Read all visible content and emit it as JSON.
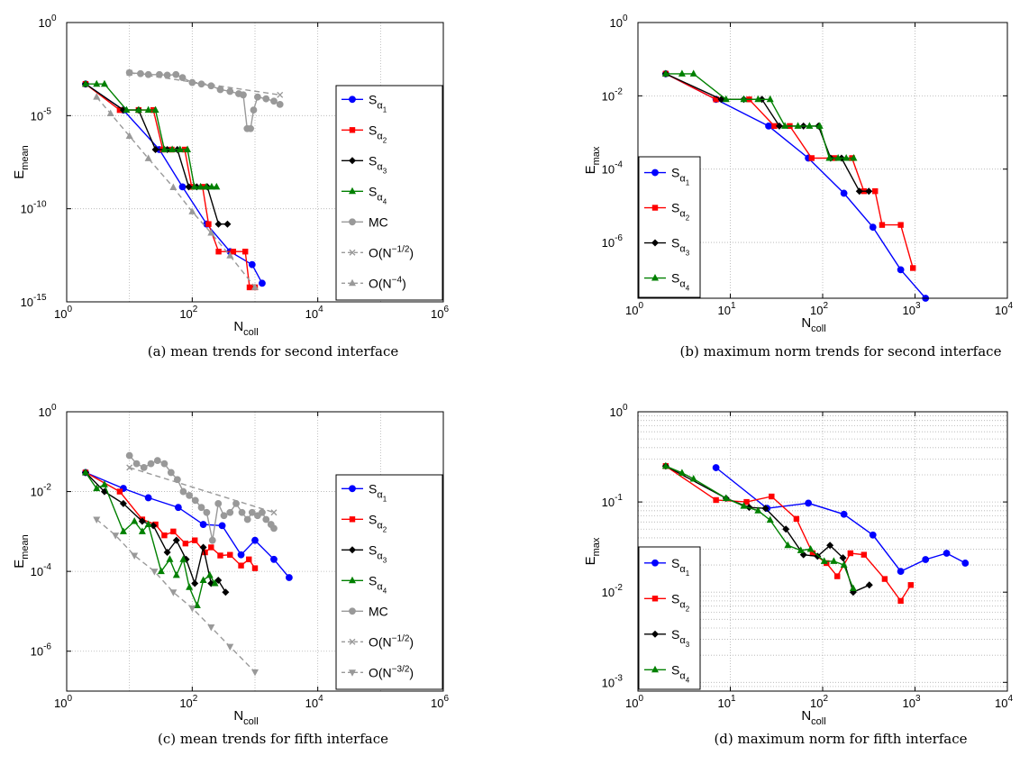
{
  "chart_data": [
    {
      "type": "line",
      "caption": "(a) mean trends for second interface",
      "xlabel": {
        "base": "N",
        "sub": "coll"
      },
      "ylabel": {
        "base": "E",
        "sub": "mean"
      },
      "x_scale": "log",
      "y_scale": "log",
      "xlim": [
        1,
        1000000
      ],
      "ylim": [
        1e-15,
        1
      ],
      "x_ticks": [
        {
          "base": "10",
          "exp": "0",
          "value": 1
        },
        {
          "base": "10",
          "exp": "2",
          "value": 100
        },
        {
          "base": "10",
          "exp": "4",
          "value": 10000
        },
        {
          "base": "10",
          "exp": "6",
          "value": 1000000
        }
      ],
      "y_ticks": [
        {
          "base": "10",
          "exp": "-15",
          "value": 1e-15
        },
        {
          "base": "10",
          "exp": "-10",
          "value": 1e-10
        },
        {
          "base": "10",
          "exp": "-5",
          "value": 1e-05
        },
        {
          "base": "10",
          "exp": "0",
          "value": 1
        }
      ],
      "grid": "major",
      "legend": "right",
      "series": [
        {
          "name": "S",
          "sub": "α",
          "subsub": "1",
          "color": "#0000ff",
          "marker": "circle",
          "dash": "",
          "x": [
            2,
            8,
            30,
            70,
            170,
            400,
            900,
            1300
          ],
          "y": [
            0.0005,
            2e-05,
            1.5e-07,
            1.5e-09,
            1.5e-11,
            5e-13,
            1e-13,
            1e-14
          ]
        },
        {
          "name": "S",
          "sub": "α",
          "subsub": "2",
          "color": "#ff0000",
          "marker": "square",
          "dash": "",
          "x": [
            2,
            7,
            14,
            24,
            34,
            47,
            76,
            98,
            146,
            182,
            263,
            450,
            700,
            820,
            1000
          ],
          "y": [
            0.0005,
            2e-05,
            2e-05,
            2e-05,
            1.5e-07,
            1.5e-07,
            1.5e-07,
            1.5e-09,
            1.5e-09,
            1.5e-11,
            5e-13,
            5e-13,
            5e-13,
            6e-15,
            6e-15
          ]
        },
        {
          "name": "S",
          "sub": "α",
          "subsub": "3",
          "color": "#000000",
          "marker": "diamond",
          "dash": "",
          "x": [
            2,
            8,
            14,
            26,
            40,
            58,
            88,
            118,
            174,
            262,
            364
          ],
          "y": [
            0.0005,
            2e-05,
            2e-05,
            1.5e-07,
            1.5e-07,
            1.5e-07,
            1.5e-09,
            1.5e-09,
            1.5e-09,
            1.5e-11,
            1.5e-11
          ]
        },
        {
          "name": "S",
          "sub": "α",
          "subsub": "4",
          "color": "#008000",
          "marker": "triangle",
          "dash": "",
          "x": [
            2,
            3,
            4,
            9,
            14,
            20,
            26,
            36,
            48,
            64,
            84,
            108,
            136,
            168,
            204,
            244
          ],
          "y": [
            0.0005,
            0.0005,
            0.0005,
            2e-05,
            2e-05,
            2e-05,
            2e-05,
            1.5e-07,
            1.5e-07,
            1.5e-07,
            1.5e-07,
            1.5e-09,
            1.5e-09,
            1.5e-09,
            1.5e-09,
            1.5e-09
          ]
        },
        {
          "name": "MC",
          "color": "#999999",
          "marker": "circle",
          "dash": "",
          "x": [
            10,
            15,
            20,
            30,
            40,
            55,
            70,
            100,
            140,
            200,
            280,
            400,
            550,
            650,
            750,
            850,
            950,
            1100,
            1500,
            2000,
            2500
          ],
          "y": [
            0.002,
            0.0018,
            0.0016,
            0.0016,
            0.0015,
            0.0016,
            0.0011,
            0.0006,
            0.0005,
            0.0004,
            0.00025,
            0.0002,
            0.00015,
            0.00013,
            2e-06,
            2e-06,
            2e-05,
            0.0001,
            8e-05,
            6e-05,
            4e-05
          ]
        },
        {
          "name": "O(N",
          "sup": "−1/2",
          "name_end": ")",
          "color": "#999999",
          "marker": "x",
          "dash": "6,4",
          "x": [
            10,
            2500
          ],
          "y": [
            0.002,
            0.00013
          ]
        },
        {
          "name": "O(N",
          "sup": "−4",
          "name_end": ")",
          "color": "#999999",
          "marker": "triangle",
          "dash": "6,4",
          "x": [
            3,
            5,
            10,
            20,
            50,
            100,
            200,
            400,
            1000
          ],
          "y": [
            0.0001,
            1.3e-05,
            8e-07,
            5e-08,
            1.4e-09,
            7e-11,
            5e-12,
            3e-13,
            6e-15
          ]
        }
      ]
    },
    {
      "type": "line",
      "caption": "(b) maximum norm trends for second interface",
      "xlabel": {
        "base": "N",
        "sub": "coll"
      },
      "ylabel": {
        "base": "E",
        "sub": "max"
      },
      "x_scale": "log",
      "y_scale": "log",
      "xlim": [
        1,
        10000
      ],
      "ylim": [
        3e-08,
        1
      ],
      "x_ticks": [
        {
          "base": "10",
          "exp": "0",
          "value": 1
        },
        {
          "base": "10",
          "exp": "1",
          "value": 10
        },
        {
          "base": "10",
          "exp": "2",
          "value": 100
        },
        {
          "base": "10",
          "exp": "3",
          "value": 1000
        },
        {
          "base": "10",
          "exp": "4",
          "value": 10000
        }
      ],
      "y_ticks": [
        {
          "base": "10",
          "exp": "-6",
          "value": 1e-06
        },
        {
          "base": "10",
          "exp": "-4",
          "value": 0.0001
        },
        {
          "base": "10",
          "exp": "-2",
          "value": 0.01
        },
        {
          "base": "10",
          "exp": "0",
          "value": 1
        }
      ],
      "grid": "major",
      "legend": "left",
      "series": [
        {
          "name": "S",
          "sub": "α",
          "subsub": "1",
          "color": "#0000ff",
          "marker": "circle",
          "dash": "",
          "x": [
            2,
            7,
            26,
            70,
            170,
            350,
            700,
            1300
          ],
          "y": [
            0.04,
            0.008,
            0.0015,
            0.0002,
            2.2e-05,
            2.6e-06,
            1.8e-07,
            3e-08
          ]
        },
        {
          "name": "S",
          "sub": "α",
          "subsub": "2",
          "color": "#ff0000",
          "marker": "square",
          "dash": "",
          "x": [
            2,
            7,
            16,
            30,
            44,
            76,
            134,
            208,
            280,
            370,
            440,
            700,
            950
          ],
          "y": [
            0.04,
            0.008,
            0.008,
            0.0015,
            0.0015,
            0.0002,
            0.0002,
            0.0002,
            2.5e-05,
            2.5e-05,
            3e-06,
            3e-06,
            2e-07
          ]
        },
        {
          "name": "S",
          "sub": "α",
          "subsub": "3",
          "color": "#000000",
          "marker": "diamond",
          "dash": "",
          "x": [
            2,
            8,
            14,
            22,
            34,
            62,
            90,
            122,
            160,
            250,
            316
          ],
          "y": [
            0.04,
            0.008,
            0.008,
            0.008,
            0.0015,
            0.0015,
            0.0015,
            0.0002,
            0.0002,
            2.5e-05,
            2.5e-05
          ]
        },
        {
          "name": "S",
          "sub": "α",
          "subsub": "4",
          "color": "#008000",
          "marker": "triangle",
          "dash": "",
          "x": [
            2,
            3,
            4,
            9,
            14,
            20,
            27,
            39,
            54,
            72,
            93,
            118,
            147,
            180,
            217
          ],
          "y": [
            0.04,
            0.04,
            0.04,
            0.008,
            0.008,
            0.008,
            0.008,
            0.0015,
            0.0015,
            0.0015,
            0.0015,
            0.0002,
            0.0002,
            0.0002,
            0.0002
          ]
        }
      ]
    },
    {
      "type": "line",
      "caption": "(c) mean trends for fifth interface",
      "xlabel": {
        "base": "N",
        "sub": "coll"
      },
      "ylabel": {
        "base": "E",
        "sub": "mean"
      },
      "x_scale": "log",
      "y_scale": "log",
      "xlim": [
        1,
        1000000
      ],
      "ylim": [
        1e-07,
        1
      ],
      "x_ticks": [
        {
          "base": "10",
          "exp": "0",
          "value": 1
        },
        {
          "base": "10",
          "exp": "2",
          "value": 100
        },
        {
          "base": "10",
          "exp": "4",
          "value": 10000
        },
        {
          "base": "10",
          "exp": "6",
          "value": 1000000
        }
      ],
      "y_ticks": [
        {
          "base": "10",
          "exp": "-6",
          "value": 1e-06
        },
        {
          "base": "10",
          "exp": "-4",
          "value": 0.0001
        },
        {
          "base": "10",
          "exp": "-2",
          "value": 0.01
        },
        {
          "base": "10",
          "exp": "0",
          "value": 1
        }
      ],
      "grid": "major",
      "legend": "right",
      "series": [
        {
          "name": "S",
          "sub": "α",
          "subsub": "1",
          "color": "#0000ff",
          "marker": "circle",
          "dash": "",
          "x": [
            2,
            8,
            20,
            60,
            150,
            300,
            600,
            1000,
            2000,
            3500
          ],
          "y": [
            0.03,
            0.012,
            0.007,
            0.004,
            0.0015,
            0.0014,
            0.00026,
            0.0006,
            0.0002,
            7e-05
          ]
        },
        {
          "name": "S",
          "sub": "α",
          "subsub": "2",
          "color": "#ff0000",
          "marker": "square",
          "dash": "",
          "x": [
            2,
            7,
            16,
            26,
            36,
            50,
            78,
            110,
            160,
            200,
            280,
            400,
            600,
            800,
            1000
          ],
          "y": [
            0.03,
            0.01,
            0.002,
            0.0015,
            0.0008,
            0.001,
            0.0005,
            0.0006,
            0.0003,
            0.0004,
            0.00025,
            0.00026,
            0.00014,
            0.0002,
            0.00012
          ]
        },
        {
          "name": "S",
          "sub": "α",
          "subsub": "3",
          "color": "#000000",
          "marker": "diamond",
          "dash": "",
          "x": [
            2,
            4,
            8,
            16,
            24,
            40,
            56,
            80,
            110,
            150,
            200,
            260,
            340
          ],
          "y": [
            0.03,
            0.01,
            0.005,
            0.0018,
            0.0014,
            0.0003,
            0.0006,
            0.0002,
            5e-05,
            0.0004,
            5e-05,
            6e-05,
            3e-05
          ]
        },
        {
          "name": "S",
          "sub": "α",
          "subsub": "4",
          "color": "#008000",
          "marker": "triangle",
          "dash": "",
          "x": [
            2,
            3,
            4,
            8,
            12,
            16,
            20,
            32,
            44,
            56,
            72,
            90,
            120,
            150,
            190,
            230
          ],
          "y": [
            0.03,
            0.012,
            0.015,
            0.001,
            0.0018,
            0.001,
            0.0015,
            0.0001,
            0.0002,
            8e-05,
            0.0002,
            4e-05,
            1.4e-05,
            6e-05,
            8e-05,
            5e-05
          ]
        },
        {
          "name": "MC",
          "color": "#999999",
          "marker": "circle",
          "dash": "",
          "x": [
            10,
            13,
            17,
            22,
            28,
            36,
            46,
            58,
            72,
            90,
            112,
            140,
            170,
            210,
            260,
            320,
            400,
            500,
            620,
            760,
            900,
            1100,
            1300,
            1500,
            1800,
            2000
          ],
          "y": [
            0.08,
            0.05,
            0.04,
            0.05,
            0.06,
            0.05,
            0.03,
            0.02,
            0.01,
            0.008,
            0.006,
            0.004,
            0.003,
            0.0006,
            0.005,
            0.0025,
            0.003,
            0.005,
            0.003,
            0.002,
            0.003,
            0.0025,
            0.003,
            0.002,
            0.0015,
            0.0012
          ]
        },
        {
          "name": "O(N",
          "sup": "−1/2",
          "name_end": ")",
          "color": "#999999",
          "marker": "x",
          "dash": "6,4",
          "x": [
            10,
            2000
          ],
          "y": [
            0.04,
            0.003
          ]
        },
        {
          "name": "O(N",
          "sup": "−3/2",
          "name_end": ")",
          "color": "#999999",
          "marker": "triangle-down",
          "dash": "6,4",
          "x": [
            3,
            6,
            12,
            25,
            50,
            100,
            200,
            400,
            1000
          ],
          "y": [
            0.002,
            0.0008,
            0.00025,
            0.0001,
            3e-05,
            1.2e-05,
            4e-06,
            1.3e-06,
            3e-07
          ]
        }
      ]
    },
    {
      "type": "line",
      "caption": "(d) maximum norm for fifth interface",
      "xlabel": {
        "base": "N",
        "sub": "coll"
      },
      "ylabel": {
        "base": "E",
        "sub": "max"
      },
      "x_scale": "log",
      "y_scale": "log",
      "xlim": [
        1,
        10000
      ],
      "ylim": [
        0.0008,
        1
      ],
      "x_ticks": [
        {
          "base": "10",
          "exp": "0",
          "value": 1
        },
        {
          "base": "10",
          "exp": "1",
          "value": 10
        },
        {
          "base": "10",
          "exp": "2",
          "value": 100
        },
        {
          "base": "10",
          "exp": "3",
          "value": 1000
        },
        {
          "base": "10",
          "exp": "4",
          "value": 10000
        }
      ],
      "y_ticks": [
        {
          "base": "10",
          "exp": "-3",
          "value": 0.001
        },
        {
          "base": "10",
          "exp": "-2",
          "value": 0.01
        },
        {
          "base": "10",
          "exp": "-1",
          "value": 0.1
        },
        {
          "base": "10",
          "exp": "0",
          "value": 1
        }
      ],
      "grid": "major+minor",
      "legend": "left",
      "series": [
        {
          "name": "S",
          "sub": "α",
          "subsub": "1",
          "color": "#0000ff",
          "marker": "circle",
          "dash": "",
          "x": [
            7,
            25,
            70,
            170,
            350,
            700,
            1300,
            2200,
            3500
          ],
          "y": [
            0.24,
            0.085,
            0.097,
            0.073,
            0.043,
            0.017,
            0.023,
            0.027,
            0.021
          ]
        },
        {
          "name": "S",
          "sub": "α",
          "subsub": "2",
          "color": "#ff0000",
          "marker": "square",
          "dash": "",
          "x": [
            2,
            7,
            15,
            28,
            52,
            78,
            110,
            144,
            200,
            280,
            470,
            700,
            900
          ],
          "y": [
            0.25,
            0.105,
            0.1,
            0.115,
            0.065,
            0.027,
            0.021,
            0.015,
            0.027,
            0.026,
            0.014,
            0.008,
            0.012
          ]
        },
        {
          "name": "S",
          "sub": "α",
          "subsub": "3",
          "color": "#000000",
          "marker": "diamond",
          "dash": "",
          "x": [
            2,
            9,
            16,
            24,
            40,
            62,
            88,
            120,
            166,
            214,
            320
          ],
          "y": [
            0.25,
            0.11,
            0.087,
            0.085,
            0.05,
            0.026,
            0.025,
            0.033,
            0.024,
            0.01,
            0.012
          ]
        },
        {
          "name": "S",
          "sub": "α",
          "subsub": "4",
          "color": "#008000",
          "marker": "triangle",
          "dash": "",
          "x": [
            2,
            3,
            4,
            9,
            14,
            20,
            27,
            42,
            58,
            74,
            104,
            132,
            170,
            214
          ],
          "y": [
            0.25,
            0.21,
            0.18,
            0.11,
            0.09,
            0.08,
            0.063,
            0.033,
            0.029,
            0.03,
            0.022,
            0.022,
            0.02,
            0.011
          ]
        }
      ]
    }
  ]
}
